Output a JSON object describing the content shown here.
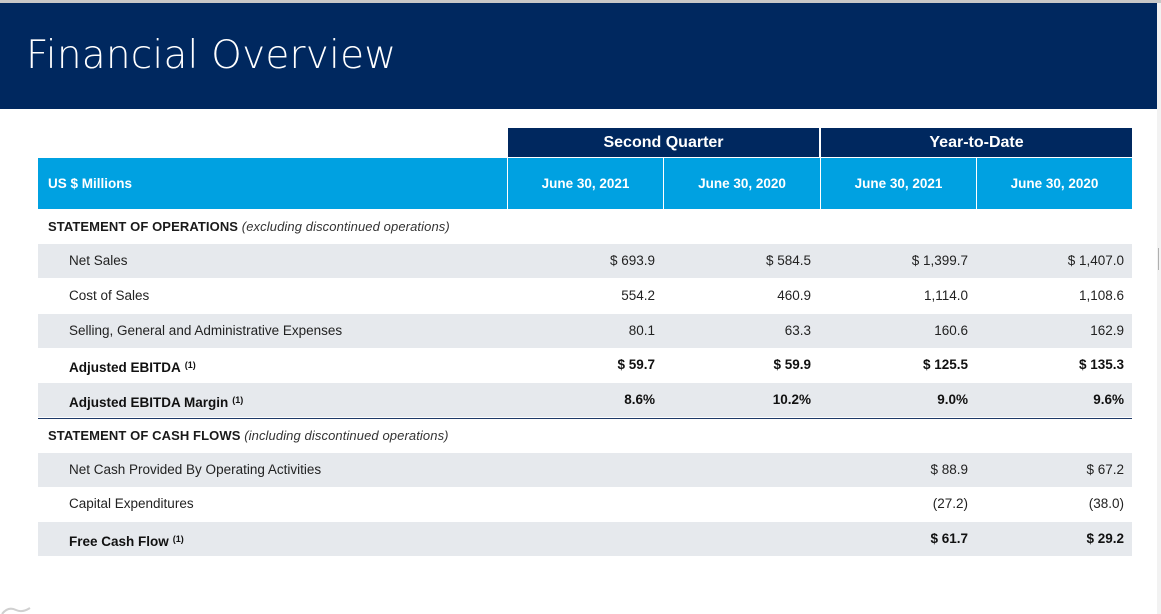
{
  "title": "Financial Overview",
  "table": {
    "groups": [
      {
        "label": "Second Quarter"
      },
      {
        "label": "Year-to-Date"
      }
    ],
    "columns": {
      "units": "US $ Millions",
      "dates": [
        "June 30, 2021",
        "June 30, 2020",
        "June 30, 2021",
        "June 30, 2020"
      ]
    },
    "sections": [
      {
        "title": "STATEMENT OF OPERATIONS",
        "note": "(excluding discontinued operations)",
        "rows": [
          {
            "label": "Net Sales",
            "sup": "",
            "values": [
              "$ 693.9",
              "$ 584.5",
              "$ 1,399.7",
              "$ 1,407.0"
            ]
          },
          {
            "label": "Cost of Sales",
            "sup": "",
            "values": [
              "554.2",
              "460.9",
              "1,114.0",
              "1,108.6"
            ]
          },
          {
            "label": "Selling, General and Administrative Expenses",
            "sup": "",
            "values": [
              "80.1",
              "63.3",
              "160.6",
              "162.9"
            ]
          },
          {
            "label": "Adjusted EBITDA",
            "sup": "(1)",
            "values": [
              "$ 59.7",
              "$ 59.9",
              "$ 125.5",
              "$ 135.3"
            ]
          },
          {
            "label": "Adjusted EBITDA Margin",
            "sup": "(1)",
            "values": [
              "8.6%",
              "10.2%",
              "9.0%",
              "9.6%"
            ]
          }
        ]
      },
      {
        "title": "STATEMENT OF CASH FLOWS",
        "note": "(including discontinued operations)",
        "rows": [
          {
            "label": "Net Cash Provided By Operating Activities",
            "sup": "",
            "values": [
              "",
              "",
              "$ 88.9",
              "$ 67.2"
            ]
          },
          {
            "label": "Capital Expenditures",
            "sup": "",
            "values": [
              "",
              "",
              "(27.2)",
              "(38.0)"
            ]
          },
          {
            "label": "Free Cash Flow",
            "sup": "(1)",
            "values": [
              "",
              "",
              "$ 61.7",
              "$ 29.2"
            ]
          }
        ]
      }
    ]
  },
  "colors": {
    "title_bar": "#00285f",
    "group_header": "#00285f",
    "column_header": "#00a1e1",
    "row_shade": "#e6e9ed"
  }
}
